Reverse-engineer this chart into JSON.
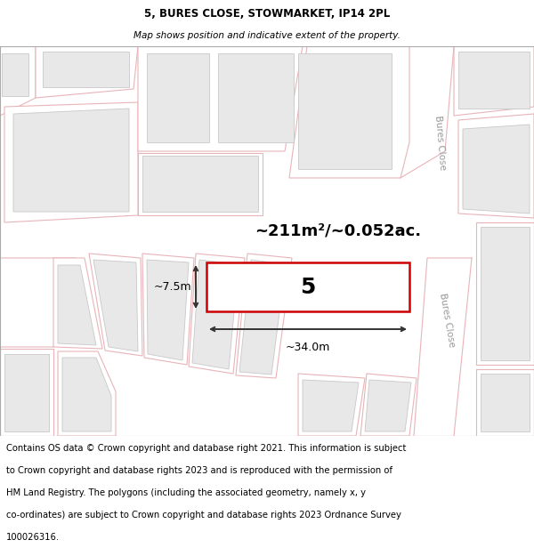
{
  "title": "5, BURES CLOSE, STOWMARKET, IP14 2PL",
  "subtitle": "Map shows position and indicative extent of the property.",
  "map_bg": "#f7f7f7",
  "plot_color": "#e8b4b8",
  "plot_fill": "#fdf5f5",
  "building_fill": "#e8e8e8",
  "building_edge": "#c8c8c8",
  "highlight_color": "#cc0000",
  "highlight_fill": "#ffffff",
  "road_fill": "#ffffff",
  "area_text": "~211m²/~0.052ac.",
  "plot_number": "5",
  "dim_width": "~34.0m",
  "dim_height": "~7.5m",
  "street_label": "Bures Close",
  "title_fontsize": 8.5,
  "subtitle_fontsize": 7.5,
  "footer_fontsize": 7.2,
  "footer_lines": [
    "Contains OS data © Crown copyright and database right 2021. This information is subject",
    "to Crown copyright and database rights 2023 and is reproduced with the permission of",
    "HM Land Registry. The polygons (including the associated geometry, namely x, y",
    "co-ordinates) are subject to Crown copyright and database rights 2023 Ordnance Survey",
    "100026316."
  ]
}
